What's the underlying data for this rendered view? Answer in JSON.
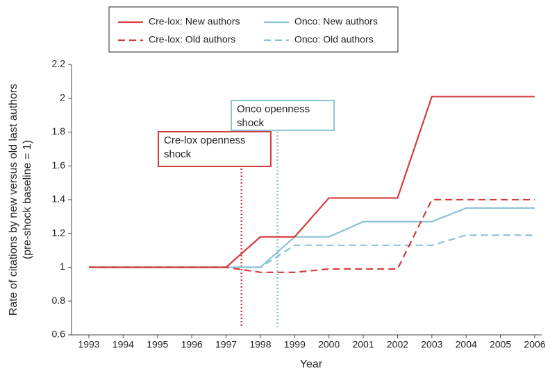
{
  "chart_data": {
    "type": "line",
    "xlabel": "Year",
    "ylabel": [
      "Rate of citations by new versus old last authors",
      "(pre-shock baseline = 1)"
    ],
    "x": [
      1993,
      1994,
      1995,
      1996,
      1997,
      1998,
      1999,
      2000,
      2001,
      2002,
      2003,
      2004,
      2005,
      2006
    ],
    "series": [
      {
        "name": "Cre-lox: New authors",
        "color": "#d43d3d",
        "dash": "solid",
        "values": [
          1,
          1,
          1,
          1,
          1,
          1.18,
          1.18,
          1.41,
          1.41,
          1.41,
          2.01,
          2.01,
          2.01,
          2.01
        ]
      },
      {
        "name": "Cre-lox: Old authors",
        "color": "#d43d3d",
        "dash": "dashed",
        "values": [
          1,
          1,
          1,
          1,
          1,
          0.97,
          0.97,
          0.99,
          0.99,
          0.99,
          1.4,
          1.4,
          1.4,
          1.4
        ]
      },
      {
        "name": "Onco: New authors",
        "color": "#8cc3d5",
        "dash": "solid",
        "values": [
          1,
          1,
          1,
          1,
          1,
          1,
          1.18,
          1.18,
          1.27,
          1.27,
          1.27,
          1.35,
          1.35,
          1.35
        ]
      },
      {
        "name": "Onco: Old authors",
        "color": "#8cc3d5",
        "dash": "dashed",
        "values": [
          1,
          1,
          1,
          1,
          1,
          1,
          1.13,
          1.13,
          1.13,
          1.13,
          1.13,
          1.19,
          1.19,
          1.19
        ]
      }
    ],
    "annotations": [
      {
        "text": [
          "Cre-lox openness",
          "shock"
        ],
        "x": 1997.45,
        "color": "#d43d3d"
      },
      {
        "text": [
          "Onco openness",
          "shock"
        ],
        "x": 1998.5,
        "color": "#8cc3d5"
      }
    ],
    "xlim": [
      1993,
      2006
    ],
    "xticks": [
      1993,
      1994,
      1995,
      1996,
      1997,
      1998,
      1999,
      2000,
      2001,
      2002,
      2003,
      2004,
      2005,
      2006
    ],
    "ylim": [
      0.6,
      2.2
    ],
    "yticks": [
      0.6,
      0.8,
      1,
      1.2,
      1.4,
      1.6,
      1.8,
      2,
      2.2
    ],
    "legend": "top"
  }
}
